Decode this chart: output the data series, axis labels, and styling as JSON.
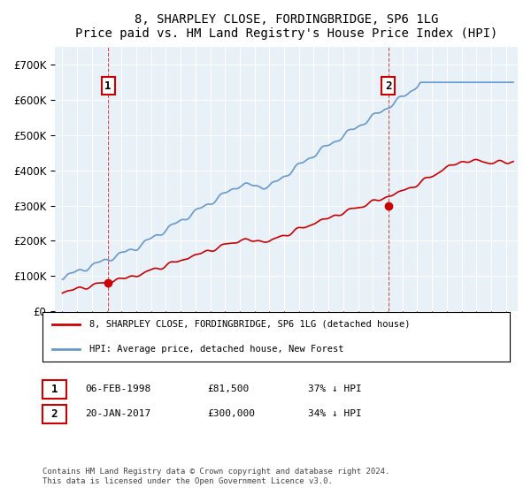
{
  "title": "8, SHARPLEY CLOSE, FORDINGBRIDGE, SP6 1LG",
  "subtitle": "Price paid vs. HM Land Registry's House Price Index (HPI)",
  "legend_line1": "8, SHARPLEY CLOSE, FORDINGBRIDGE, SP6 1LG (detached house)",
  "legend_line2": "HPI: Average price, detached house, New Forest",
  "annotation1_label": "1",
  "annotation1_date": "06-FEB-1998",
  "annotation1_price": "£81,500",
  "annotation1_hpi": "37% ↓ HPI",
  "annotation2_label": "2",
  "annotation2_date": "20-JAN-2017",
  "annotation2_price": "£300,000",
  "annotation2_hpi": "34% ↓ HPI",
  "footer": "Contains HM Land Registry data © Crown copyright and database right 2024.\nThis data is licensed under the Open Government Licence v3.0.",
  "ylim": [
    0,
    750000
  ],
  "yticks": [
    0,
    100000,
    200000,
    300000,
    400000,
    500000,
    600000,
    700000
  ],
  "ytick_labels": [
    "£0",
    "£100K",
    "£200K",
    "£300K",
    "£400K",
    "£500K",
    "£600K",
    "£700K"
  ],
  "hpi_color": "#6699cc",
  "price_color": "#cc0000",
  "bg_color": "#e8f0f8",
  "grid_color": "#ffffff",
  "annotation_box_color": "#cc0000",
  "annotation_line_color": "#cc0000"
}
